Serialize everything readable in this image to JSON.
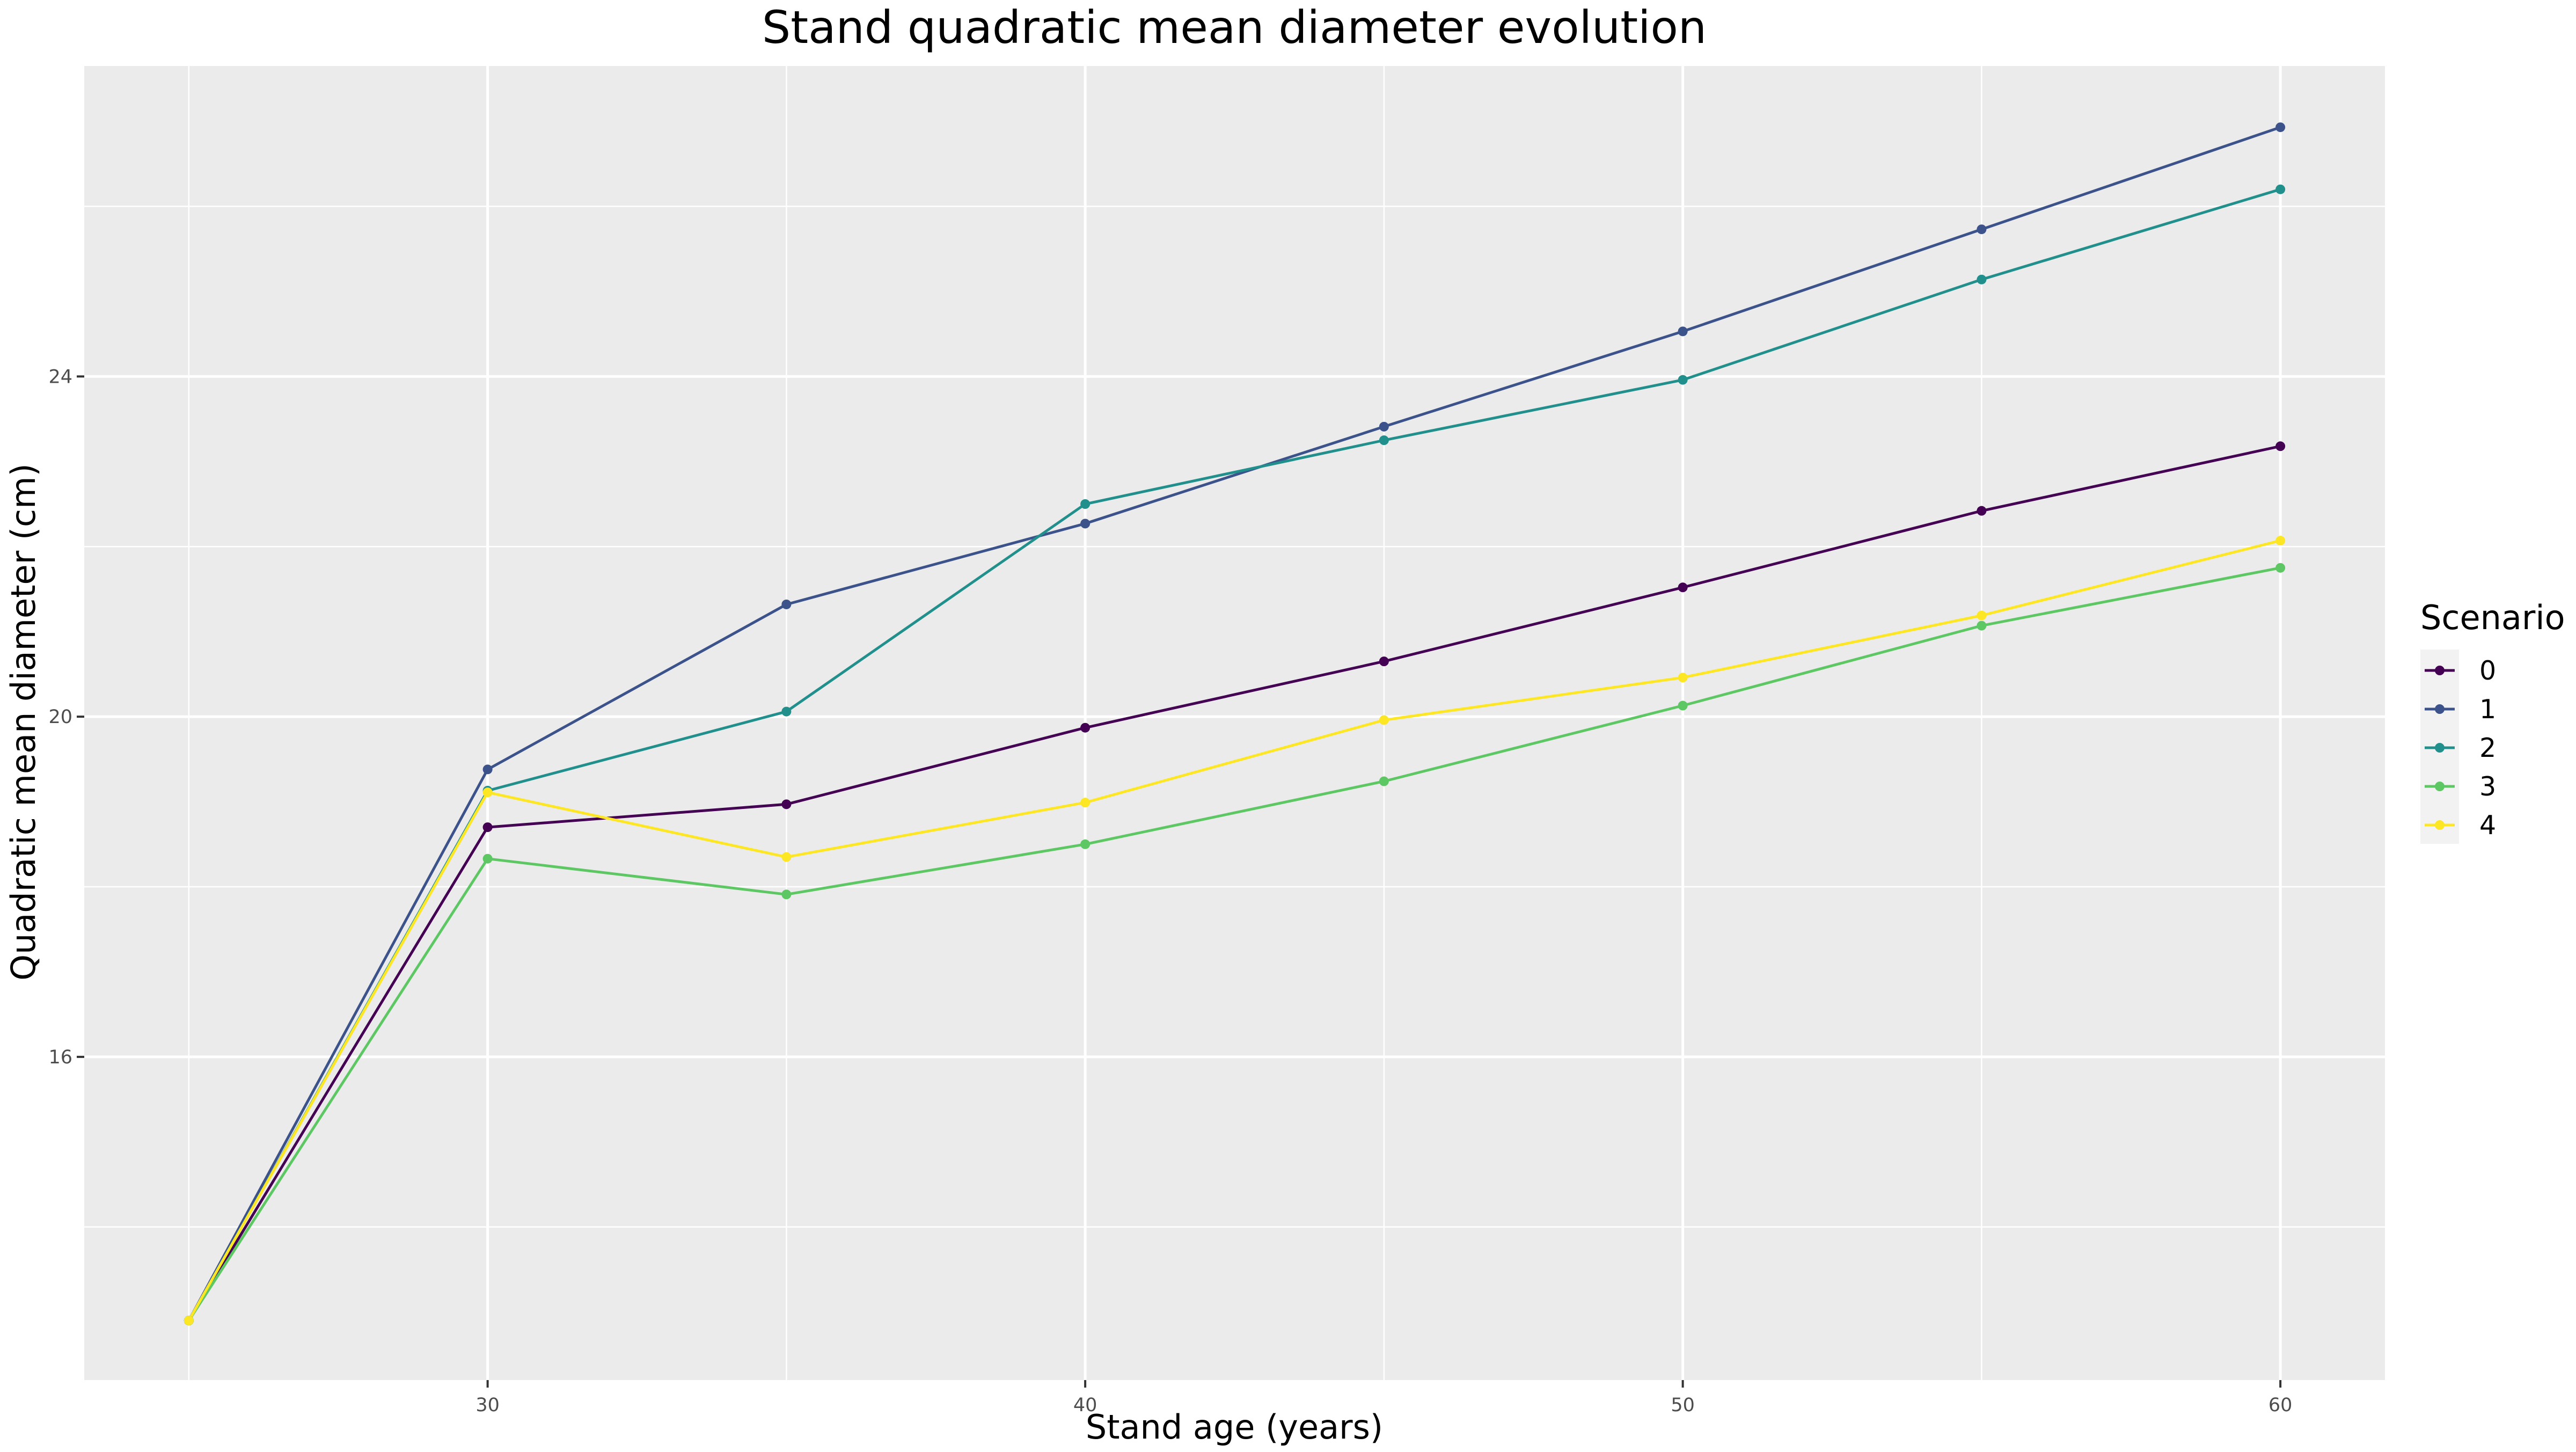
{
  "chart_data": {
    "type": "line",
    "title": "Stand quadratic mean diameter evolution",
    "xlabel": "Stand age (years)",
    "ylabel": "Quadratic mean diameter (cm)",
    "x": [
      25,
      30,
      35,
      40,
      45,
      50,
      55,
      60
    ],
    "xlim": [
      23.25,
      61.75
    ],
    "ylim": [
      12.2,
      27.65
    ],
    "xticks": [
      30,
      40,
      50,
      60
    ],
    "yticks": [
      16,
      20,
      24
    ],
    "grid": true,
    "legend_title": "Scenario",
    "legend_position": "right",
    "series": [
      {
        "name": "0",
        "color": "#440154",
        "values": [
          12.9,
          18.7,
          18.97,
          19.87,
          20.65,
          21.52,
          22.42,
          23.18
        ]
      },
      {
        "name": "1",
        "color": "#3b528b",
        "values": [
          12.9,
          19.38,
          21.32,
          22.27,
          23.41,
          24.53,
          25.73,
          26.93
        ]
      },
      {
        "name": "2",
        "color": "#21908c",
        "values": [
          12.9,
          19.13,
          20.06,
          22.5,
          23.25,
          23.96,
          25.14,
          26.2
        ]
      },
      {
        "name": "3",
        "color": "#5dc863",
        "values": [
          12.9,
          18.33,
          17.91,
          18.5,
          19.24,
          20.13,
          21.07,
          21.75
        ]
      },
      {
        "name": "4",
        "color": "#fde725",
        "values": [
          12.9,
          19.11,
          18.35,
          18.99,
          19.96,
          20.46,
          21.19,
          22.07
        ]
      }
    ]
  }
}
